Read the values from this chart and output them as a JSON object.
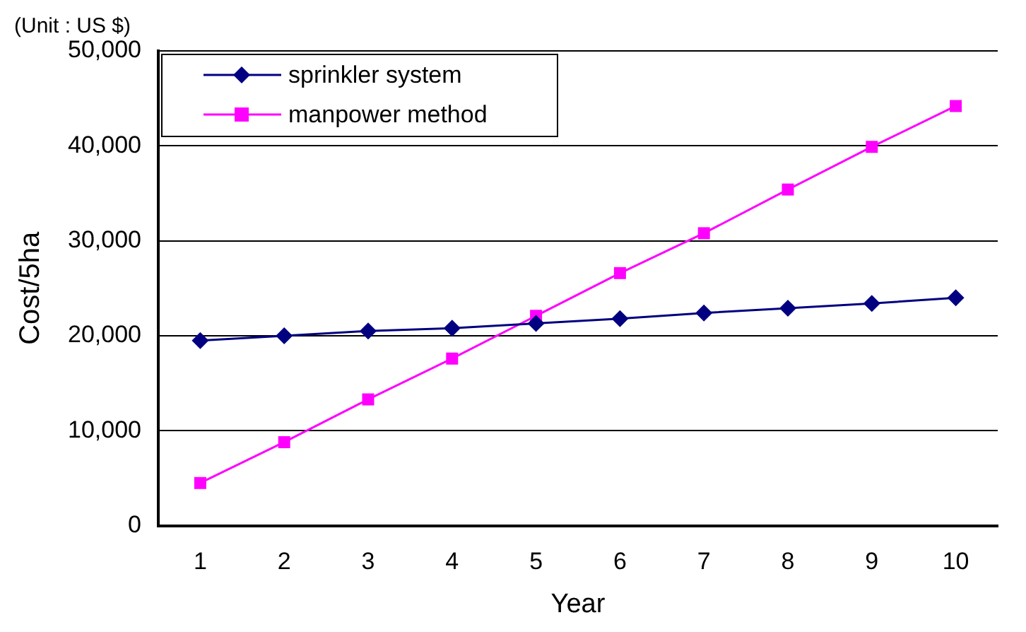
{
  "chart_data": {
    "type": "line",
    "annotations": [
      "(Unit : US $)"
    ],
    "xlabel": "Year",
    "ylabel": "Cost/5ha",
    "categories": [
      "1",
      "2",
      "3",
      "4",
      "5",
      "6",
      "7",
      "8",
      "9",
      "10"
    ],
    "series": [
      {
        "name": "sprinkler system",
        "color": "#000080",
        "marker": "diamond",
        "values": [
          19500,
          20000,
          20500,
          20800,
          21300,
          21800,
          22400,
          22900,
          23400,
          24000
        ]
      },
      {
        "name": "manpower method",
        "color": "#ff00ff",
        "marker": "square",
        "values": [
          4500,
          8800,
          13300,
          17600,
          22100,
          26600,
          30800,
          35400,
          39900,
          44200
        ]
      }
    ],
    "ylim": [
      0,
      50000
    ],
    "yticks": [
      {
        "value": 0,
        "label": "0"
      },
      {
        "value": 10000,
        "label": "10,000"
      },
      {
        "value": 20000,
        "label": "20,000"
      },
      {
        "value": 30000,
        "label": "30,000"
      },
      {
        "value": 40000,
        "label": "40,000"
      },
      {
        "value": 50000,
        "label": "50,000"
      }
    ],
    "grid": "y",
    "legend": "top left",
    "line_style": "solid"
  }
}
